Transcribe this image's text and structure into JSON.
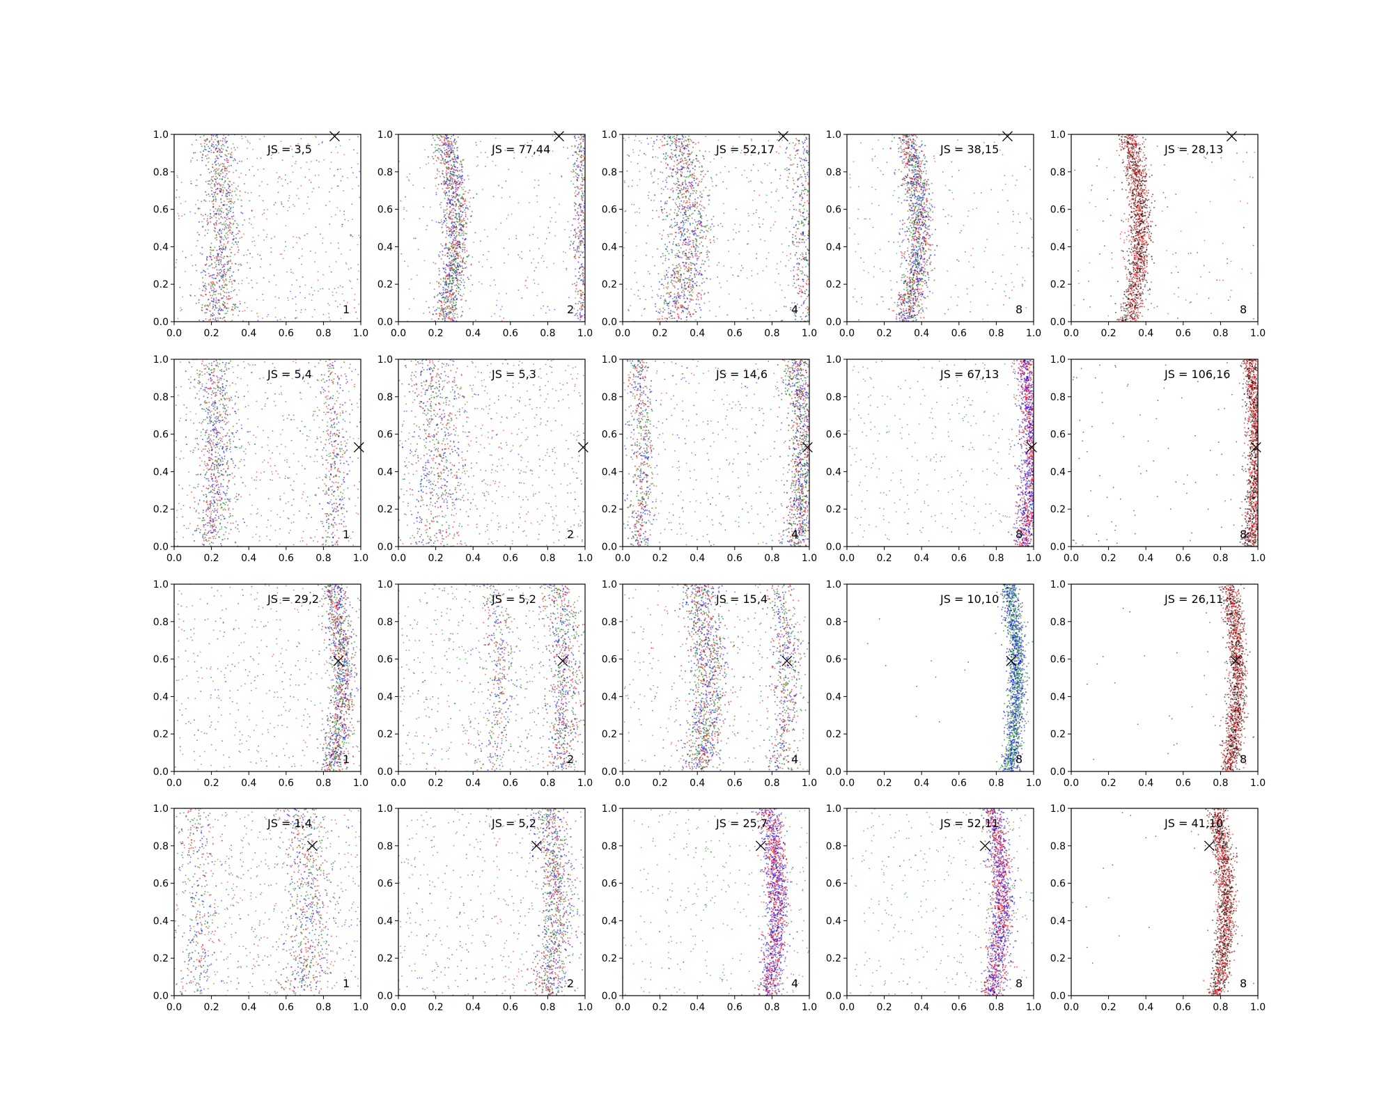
{
  "chart_data": {
    "type": "scatter",
    "layout": "4x5 grid of scatter subplots",
    "xlim": [
      0,
      1
    ],
    "ylim": [
      0,
      1
    ],
    "xticks": [
      "0.0",
      "0.2",
      "0.4",
      "0.6",
      "0.8",
      "1.0"
    ],
    "yticks": [
      "0.0",
      "0.2",
      "0.4",
      "0.6",
      "0.8",
      "1.0"
    ],
    "grid": false,
    "legend": "none",
    "colors": {
      "red": "#ff0000",
      "blue": "#0000ff",
      "green": "#008000",
      "black": "#000000",
      "marker": "#000000"
    },
    "panels": [
      {
        "label": "JS = 3,5",
        "count": "1",
        "marker": [
          0.86,
          0.99
        ],
        "front": {
          "base": 0.22,
          "amp": 0.04,
          "phase": 1.5
        },
        "front2": null,
        "width": 0.05,
        "colors": [
          "red",
          "blue",
          "green"
        ],
        "density": 0.55,
        "background": 0.55
      },
      {
        "label": "JS = 77,44",
        "count": "2",
        "marker": [
          0.86,
          0.99
        ],
        "front": {
          "base": 0.25,
          "amp": 0.06,
          "phase": 1.5
        },
        "front2": {
          "base": 0.99,
          "amp": 0.0,
          "phase": 0
        },
        "width": 0.035,
        "colors": [
          "blue",
          "green",
          "red"
        ],
        "density": 0.8,
        "background": 0.3
      },
      {
        "label": "JS = 52,17",
        "count": "4",
        "marker": [
          0.86,
          0.99
        ],
        "front": {
          "base": 0.28,
          "amp": 0.07,
          "phase": 1.5
        },
        "front2": {
          "base": 0.98,
          "amp": 0.0,
          "phase": 0
        },
        "width": 0.06,
        "colors": [
          "red",
          "blue",
          "green"
        ],
        "density": 0.7,
        "background": 0.45
      },
      {
        "label": "JS = 38,15",
        "count": "8",
        "marker": [
          0.86,
          0.99
        ],
        "front": {
          "base": 0.32,
          "amp": 0.07,
          "phase": 1.5
        },
        "front2": null,
        "width": 0.035,
        "colors": [
          "red",
          "green",
          "blue"
        ],
        "density": 0.9,
        "background": 0.25
      },
      {
        "label": "JS = 28,13",
        "count": "8",
        "marker": [
          0.86,
          0.99
        ],
        "front": {
          "base": 0.31,
          "amp": 0.06,
          "phase": 1.5
        },
        "front2": null,
        "width": 0.03,
        "colors": [
          "red",
          "black"
        ],
        "density": 0.95,
        "background": 0.15
      },
      {
        "label": "JS = 5,4",
        "count": "1",
        "marker": [
          0.99,
          0.53
        ],
        "front": {
          "base": 0.2,
          "amp": 0.03,
          "phase": 1.5
        },
        "front2": {
          "base": 0.84,
          "amp": 0.03,
          "phase": 1.5
        },
        "width": 0.05,
        "colors": [
          "blue",
          "red",
          "green"
        ],
        "density": 0.5,
        "background": 0.6
      },
      {
        "label": "JS = 5,3",
        "count": "2",
        "marker": [
          0.99,
          0.53
        ],
        "front": {
          "base": 0.18,
          "amp": 0.04,
          "phase": 1.5
        },
        "front2": null,
        "width": 0.08,
        "colors": [
          "red",
          "blue",
          "green"
        ],
        "density": 0.4,
        "background": 0.7
      },
      {
        "label": "JS = 14,6",
        "count": "4",
        "marker": [
          0.99,
          0.53
        ],
        "front": {
          "base": 0.93,
          "amp": 0.04,
          "phase": 1.5
        },
        "front2": {
          "base": 0.08,
          "amp": 0.03,
          "phase": 1.5
        },
        "width": 0.04,
        "colors": [
          "red",
          "blue",
          "green"
        ],
        "density": 0.75,
        "background": 0.45
      },
      {
        "label": "JS = 67,13",
        "count": "8",
        "marker": [
          0.99,
          0.53
        ],
        "front": {
          "base": 0.95,
          "amp": 0.04,
          "phase": 1.5
        },
        "front2": null,
        "width": 0.03,
        "colors": [
          "red",
          "blue"
        ],
        "density": 0.9,
        "background": 0.35,
        "bg_color": "green"
      },
      {
        "label": "JS = 106,16",
        "count": "8",
        "marker": [
          0.99,
          0.53
        ],
        "front": {
          "base": 0.96,
          "amp": 0.03,
          "phase": 1.5
        },
        "front2": null,
        "width": 0.025,
        "colors": [
          "red",
          "black"
        ],
        "density": 0.95,
        "background": 0.1,
        "bg_color": "black"
      },
      {
        "label": "JS = 29,2",
        "count": "1",
        "marker": [
          0.88,
          0.59
        ],
        "front": {
          "base": 0.85,
          "amp": 0.05,
          "phase": 1.5
        },
        "front2": null,
        "width": 0.035,
        "colors": [
          "green",
          "blue",
          "red"
        ],
        "density": 0.75,
        "background": 0.5
      },
      {
        "label": "JS = 5,2",
        "count": "2",
        "marker": [
          0.88,
          0.59
        ],
        "front": {
          "base": 0.86,
          "amp": 0.04,
          "phase": 1.5
        },
        "front2": {
          "base": 0.5,
          "amp": 0.05,
          "phase": 1.5
        },
        "width": 0.05,
        "colors": [
          "red",
          "blue",
          "green"
        ],
        "density": 0.45,
        "background": 0.65
      },
      {
        "label": "JS = 15,4",
        "count": "4",
        "marker": [
          0.88,
          0.59
        ],
        "front": {
          "base": 0.4,
          "amp": 0.06,
          "phase": 1.5
        },
        "front2": {
          "base": 0.84,
          "amp": 0.04,
          "phase": 1.5
        },
        "width": 0.05,
        "colors": [
          "red",
          "green",
          "blue"
        ],
        "density": 0.75,
        "background": 0.4
      },
      {
        "label": "JS = 10,10",
        "count": "8",
        "marker": [
          0.88,
          0.59
        ],
        "front": {
          "base": 0.87,
          "amp": 0.04,
          "phase": 1.5
        },
        "front2": null,
        "width": 0.025,
        "colors": [
          "green",
          "blue"
        ],
        "density": 0.95,
        "background": 0.02,
        "bg_color": "black"
      },
      {
        "label": "JS = 26,11",
        "count": "8",
        "marker": [
          0.88,
          0.59
        ],
        "front": {
          "base": 0.85,
          "amp": 0.04,
          "phase": 1.5
        },
        "front2": null,
        "width": 0.025,
        "colors": [
          "red",
          "black"
        ],
        "density": 0.95,
        "background": 0.03,
        "bg_color": "black"
      },
      {
        "label": "JS = 1,4",
        "count": "1",
        "marker": [
          0.74,
          0.8
        ],
        "front": {
          "base": 0.68,
          "amp": 0.04,
          "phase": 1.5
        },
        "front2": {
          "base": 0.1,
          "amp": 0.03,
          "phase": 1.5
        },
        "width": 0.06,
        "colors": [
          "red",
          "blue",
          "green"
        ],
        "density": 0.4,
        "background": 0.7
      },
      {
        "label": "JS = 5,2",
        "count": "2",
        "marker": [
          0.74,
          0.8
        ],
        "front": {
          "base": 0.8,
          "amp": 0.05,
          "phase": 1.5
        },
        "front2": null,
        "width": 0.045,
        "colors": [
          "red",
          "green",
          "blue"
        ],
        "density": 0.6,
        "background": 0.55
      },
      {
        "label": "JS = 25,7",
        "count": "4",
        "marker": [
          0.74,
          0.8
        ],
        "front": {
          "base": 0.78,
          "amp": 0.05,
          "phase": 1.5
        },
        "front2": null,
        "width": 0.03,
        "colors": [
          "red",
          "blue"
        ],
        "density": 0.9,
        "background": 0.35,
        "bg_color": "green"
      },
      {
        "label": "JS = 52,11",
        "count": "8",
        "marker": [
          0.74,
          0.8
        ],
        "front": {
          "base": 0.78,
          "amp": 0.05,
          "phase": 1.5
        },
        "front2": null,
        "width": 0.03,
        "colors": [
          "red",
          "blue"
        ],
        "density": 0.9,
        "background": 0.35,
        "bg_color": "green"
      },
      {
        "label": "JS = 41,10",
        "count": "8",
        "marker": [
          0.74,
          0.8
        ],
        "front": {
          "base": 0.78,
          "amp": 0.05,
          "phase": 1.5
        },
        "front2": null,
        "width": 0.025,
        "colors": [
          "red",
          "black"
        ],
        "density": 0.95,
        "background": 0.03,
        "bg_color": "black"
      }
    ]
  }
}
